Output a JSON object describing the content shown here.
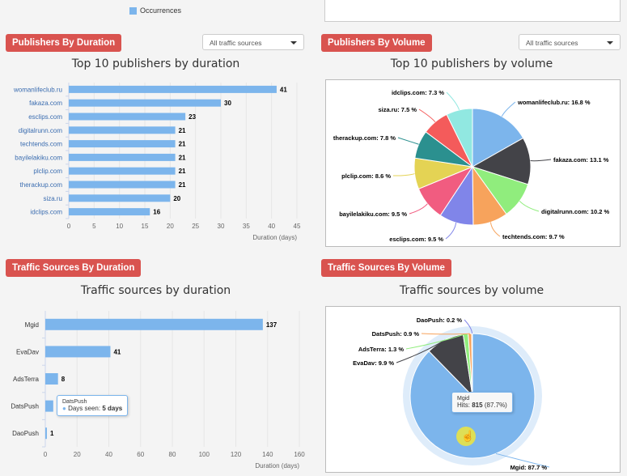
{
  "top": {
    "legend_label": "Occurrences",
    "legend_color": "#7cb5ec"
  },
  "sections": {
    "pub_duration": {
      "badge": "Publishers By Duration",
      "select": "All traffic sources",
      "title": "Top 10 publishers by duration"
    },
    "pub_volume": {
      "badge": "Publishers By Volume",
      "select": "All traffic sources",
      "title": "Top 10 publishers by volume"
    },
    "ts_duration": {
      "badge": "Traffic Sources By Duration",
      "title": "Traffic sources by duration"
    },
    "ts_volume": {
      "badge": "Traffic Sources By Volume",
      "title": "Traffic sources by volume"
    }
  },
  "tooltips": {
    "ts_duration": {
      "name": "DatsPush",
      "label": "Days seen:",
      "value": "5 days"
    },
    "ts_volume": {
      "name": "Mgid",
      "label": "Hits:",
      "value": "815",
      "pct": "(87.7%)"
    }
  },
  "chart_data": [
    {
      "type": "bar",
      "orientation": "horizontal",
      "title": "Top 10 publishers by duration",
      "xlabel": "Duration (days)",
      "categories": [
        "womanlifeclub.ru",
        "fakaza.com",
        "esclips.com",
        "digitalrunn.com",
        "techtends.com",
        "bayilelakiku.com",
        "plclip.com",
        "therackup.com",
        "siza.ru",
        "idclips.com"
      ],
      "values": [
        41,
        30,
        23,
        21,
        21,
        21,
        21,
        21,
        20,
        16
      ],
      "xlim": [
        0,
        45
      ],
      "ticks": [
        0,
        5,
        10,
        15,
        20,
        25,
        30,
        35,
        40,
        45
      ],
      "color": "#7cb5ec",
      "grid": true
    },
    {
      "type": "pie",
      "title": "Top 10 publishers by volume",
      "slices": [
        {
          "label": "womanlifeclub.ru",
          "value": 16.8,
          "color": "#7cb5ec"
        },
        {
          "label": "fakaza.com",
          "value": 13.1,
          "color": "#434348"
        },
        {
          "label": "digitalrunn.com",
          "value": 10.2,
          "color": "#90ed7d"
        },
        {
          "label": "techtends.com",
          "value": 9.7,
          "color": "#f7a35c"
        },
        {
          "label": "esclips.com",
          "value": 9.5,
          "color": "#8085e9"
        },
        {
          "label": "bayilelakiku.com",
          "value": 9.5,
          "color": "#f15c80"
        },
        {
          "label": "plclip.com",
          "value": 8.6,
          "color": "#e4d354"
        },
        {
          "label": "therackup.com",
          "value": 7.8,
          "color": "#2b908f"
        },
        {
          "label": "siza.ru",
          "value": 7.5,
          "color": "#f45b5b"
        },
        {
          "label": "idclips.com",
          "value": 7.3,
          "color": "#91e8e1"
        }
      ]
    },
    {
      "type": "bar",
      "orientation": "horizontal",
      "title": "Traffic sources by duration",
      "xlabel": "Duration (days)",
      "categories": [
        "Mgid",
        "EvaDav",
        "AdsTerra",
        "DatsPush",
        "DaoPush"
      ],
      "values": [
        137,
        41,
        8,
        5,
        1
      ],
      "xlim": [
        0,
        160
      ],
      "ticks": [
        0,
        20,
        40,
        60,
        80,
        100,
        120,
        140,
        160
      ],
      "color": "#7cb5ec",
      "grid": true
    },
    {
      "type": "pie",
      "title": "Traffic sources by volume",
      "slices": [
        {
          "label": "Mgid",
          "value": 87.7,
          "color": "#7cb5ec"
        },
        {
          "label": "EvaDav",
          "value": 9.9,
          "color": "#434348"
        },
        {
          "label": "AdsTerra",
          "value": 1.3,
          "color": "#90ed7d"
        },
        {
          "label": "DatsPush",
          "value": 0.9,
          "color": "#f7a35c"
        },
        {
          "label": "DaoPush",
          "value": 0.2,
          "color": "#8085e9"
        }
      ]
    }
  ]
}
